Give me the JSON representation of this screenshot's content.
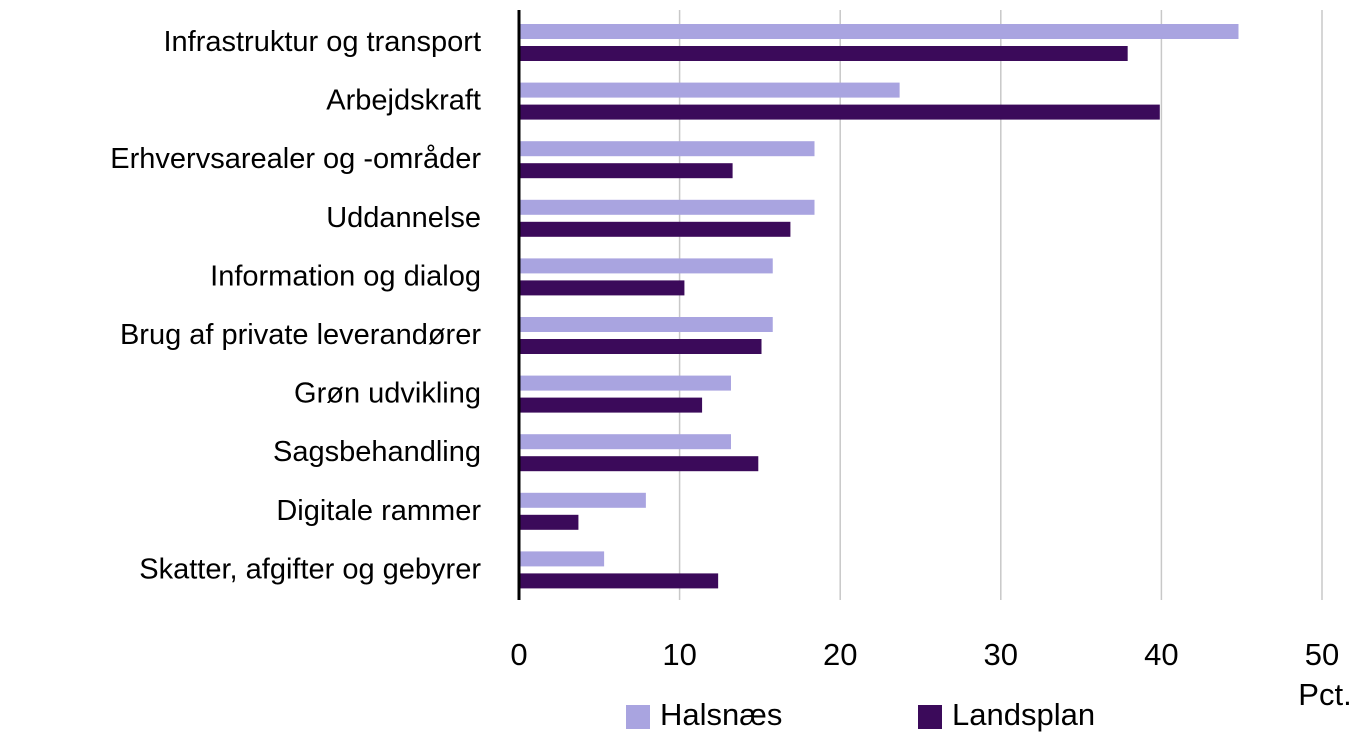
{
  "chart_data": {
    "type": "hbar",
    "categories": [
      "Infrastruktur og transport",
      "Arbejdskraft",
      "Erhvervsarealer og -områder",
      "Uddannelse",
      "Information og dialog",
      "Brug af private leverandører",
      "Grøn udvikling",
      "Sagsbehandling",
      "Digitale rammer",
      "Skatter, afgifter og gebyrer"
    ],
    "series": [
      {
        "name": "Halsnæs",
        "color": "#a9a4e0",
        "values": [
          44.8,
          23.7,
          18.4,
          18.4,
          15.8,
          15.8,
          13.2,
          13.2,
          7.9,
          5.3
        ]
      },
      {
        "name": "Landsplan",
        "color": "#3b0a5a",
        "values": [
          37.9,
          39.9,
          13.3,
          16.9,
          10.3,
          15.1,
          11.4,
          14.9,
          3.7,
          12.4
        ]
      }
    ],
    "xlabel": "Pct.",
    "xlim": [
      0,
      50
    ],
    "xticks": [
      0,
      10,
      20,
      30,
      40,
      50
    ],
    "grid": true,
    "legend": "bottom"
  }
}
